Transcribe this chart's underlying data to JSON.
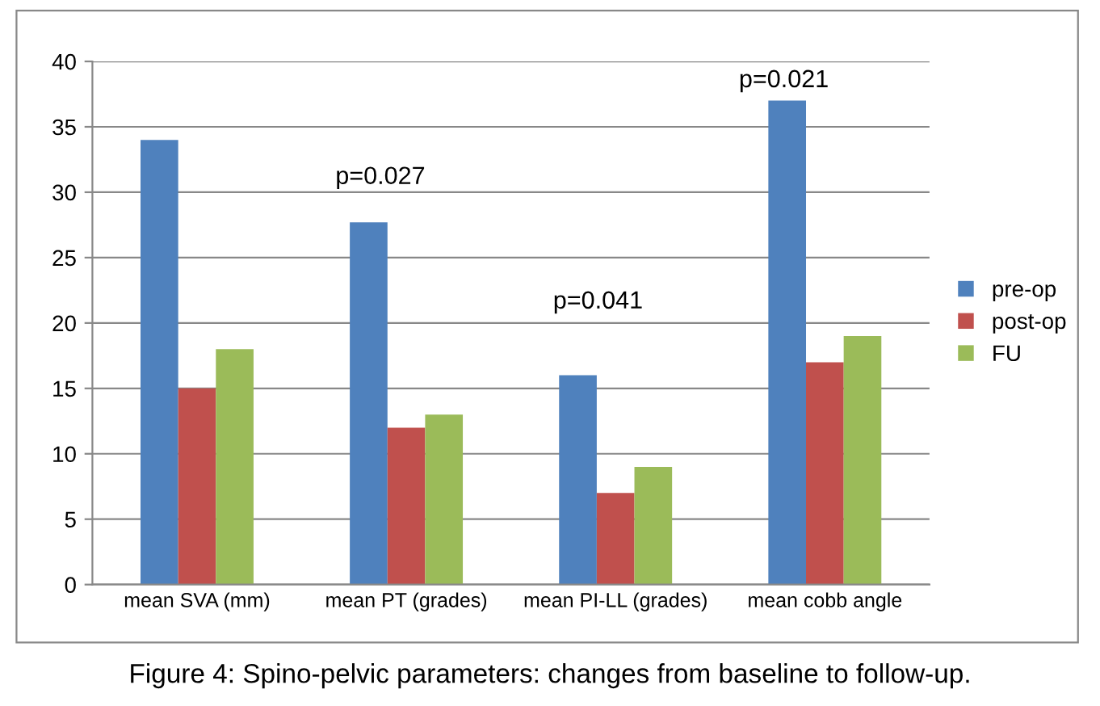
{
  "chart_data": {
    "type": "bar",
    "categories": [
      "mean SVA (mm)",
      "mean PT (grades)",
      "mean PI-LL (grades)",
      "mean cobb angle"
    ],
    "series": [
      {
        "name": "pre-op",
        "color": "#4f81bd",
        "values": [
          34,
          27.7,
          16,
          37
        ]
      },
      {
        "name": "post-op",
        "color": "#c0504d",
        "values": [
          15,
          12,
          7,
          17
        ]
      },
      {
        "name": "FU",
        "color": "#9bbb59",
        "values": [
          18,
          13,
          9,
          19
        ]
      }
    ],
    "ylim": [
      0,
      40
    ],
    "yticks": [
      0,
      5,
      10,
      15,
      20,
      25,
      30,
      35,
      40
    ],
    "grid": "y",
    "legend": "right",
    "annotations": [
      "p=0.027",
      "p=0.041",
      "p=0.021",
      "Figure 4: Spino-pelvic parameters: changes from baseline to follow-up."
    ]
  }
}
